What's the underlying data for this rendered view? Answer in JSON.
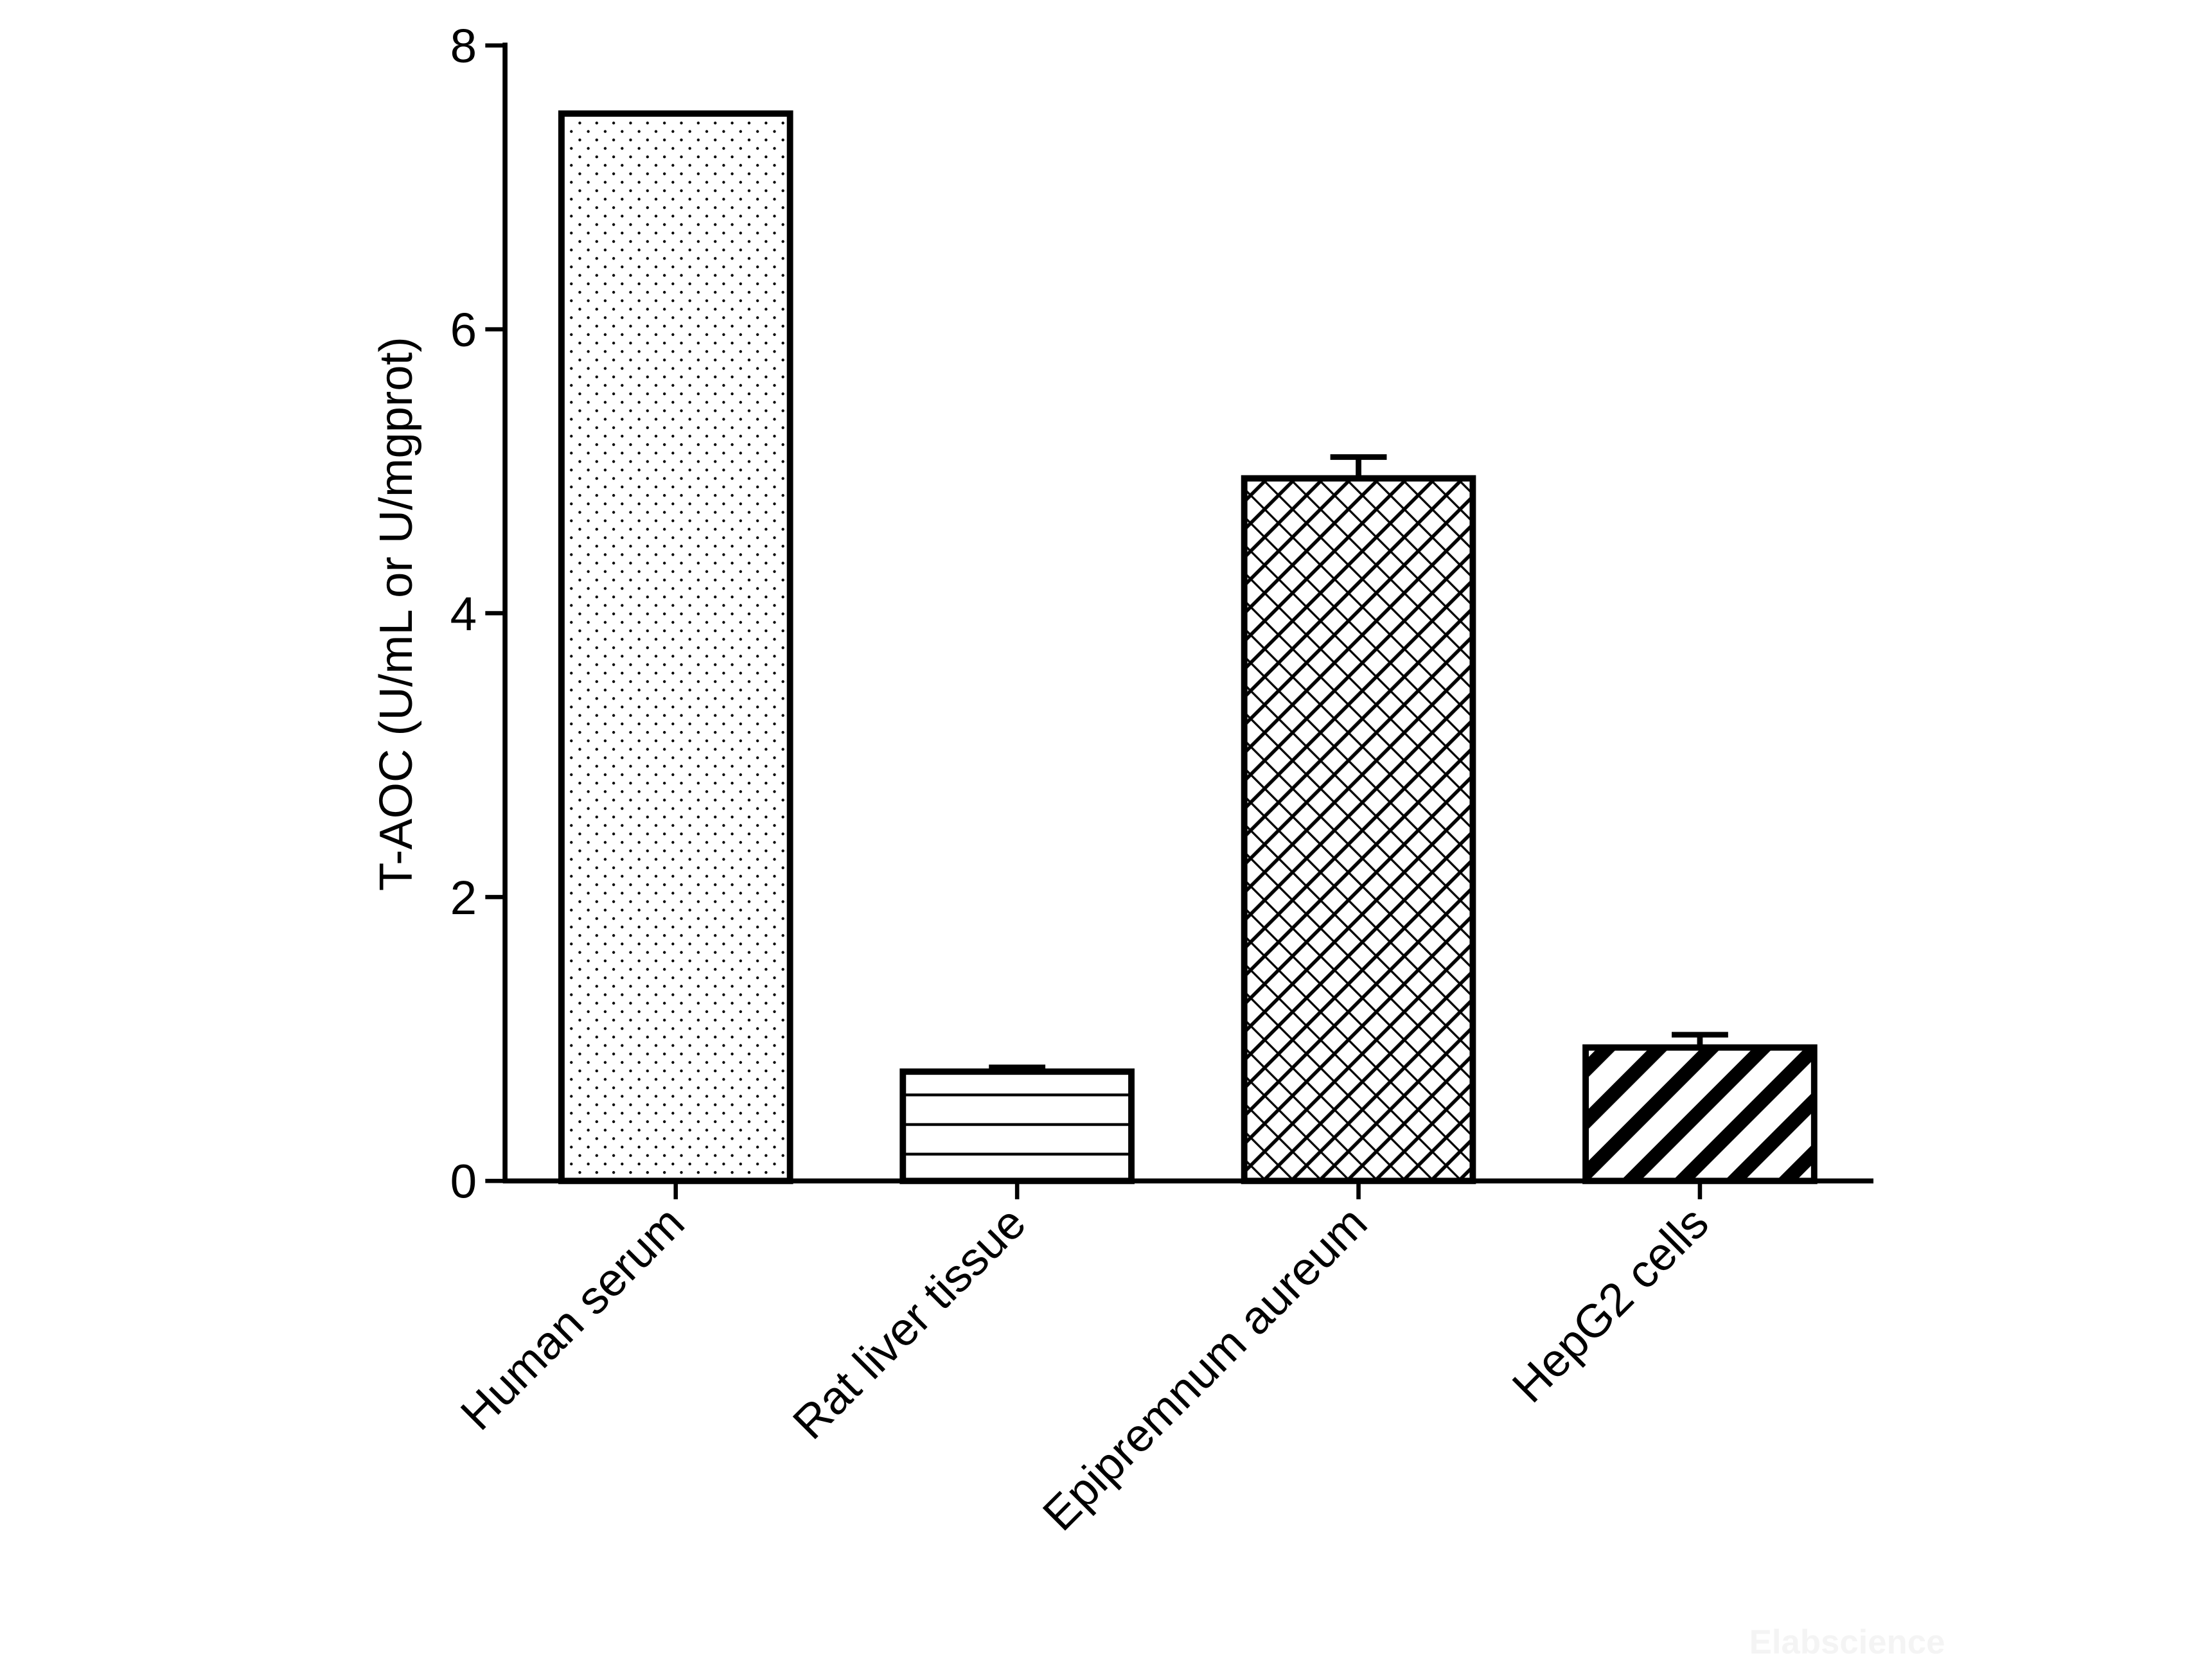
{
  "chart_data": {
    "type": "bar",
    "title": "",
    "xlabel": "",
    "ylabel": "T-AOC (U/mL or U/mgprot)",
    "ylim": [
      0,
      8
    ],
    "yticks": [
      "0",
      "2",
      "4",
      "6",
      "8"
    ],
    "grid": false,
    "categories": [
      "Human serum",
      "Rat liver tissue",
      "Epipremnum aureum",
      "HepG2 cells"
    ],
    "values": [
      7.52,
      0.77,
      4.95,
      0.94
    ],
    "errors": [
      0,
      0.03,
      0.15,
      0.09
    ],
    "fill_patterns": [
      "dots",
      "horizontal-lines",
      "crosshatch",
      "thick-diagonal-stripes"
    ],
    "colors": {
      "bar_edge": "#000000",
      "background": "#ffffff"
    }
  },
  "watermark": "Elabscience"
}
